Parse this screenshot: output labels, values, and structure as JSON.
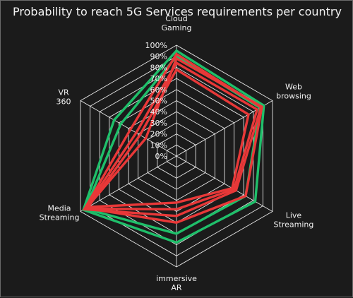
{
  "chart_data": {
    "type": "radar",
    "title": "Probability to reach 5G Services requirements per country",
    "axes": [
      "Cloud Gaming",
      "Web browsing",
      "Live Streaming",
      "immersive AR",
      "Media Streaming",
      "VR 360"
    ],
    "ticks": [
      "0%",
      "10%",
      "20%",
      "30%",
      "40%",
      "50%",
      "60%",
      "70%",
      "80%",
      "90%",
      "100%"
    ],
    "range": [
      0,
      100
    ],
    "grid": true,
    "legend": "none",
    "series": [
      {
        "color": "#1fbf6a",
        "values": [
          95,
          91,
          82,
          78,
          97,
          65
        ]
      },
      {
        "color": "#1fbf6a",
        "values": [
          90,
          87,
          72,
          70,
          95,
          58
        ]
      },
      {
        "color": "#e83838",
        "values": [
          92,
          88,
          62,
          54,
          96,
          48
        ]
      },
      {
        "color": "#e83838",
        "values": [
          88,
          89,
          72,
          60,
          94,
          32
        ]
      },
      {
        "color": "#e83838",
        "values": [
          84,
          84,
          60,
          48,
          95,
          42
        ]
      },
      {
        "color": "#e83838",
        "values": [
          78,
          75,
          58,
          42,
          92,
          38
        ]
      }
    ]
  }
}
